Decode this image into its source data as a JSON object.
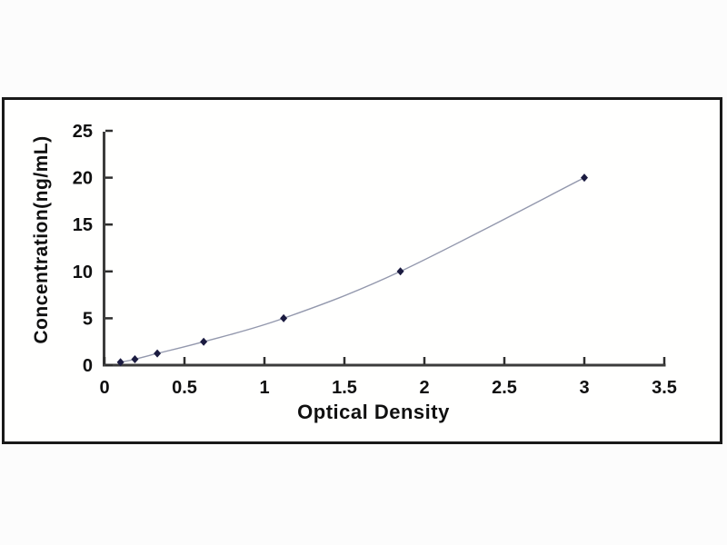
{
  "chart_data": {
    "type": "line",
    "title": "",
    "xlabel": "Optical Density",
    "ylabel": "Concentration(ng/mL)",
    "x": [
      0.1,
      0.19,
      0.33,
      0.62,
      1.12,
      1.85,
      3.0
    ],
    "y": [
      0.31,
      0.63,
      1.25,
      2.5,
      5,
      10,
      20
    ],
    "xlim": [
      0,
      3.5
    ],
    "ylim": [
      0,
      25
    ],
    "x_ticks": [
      "0",
      "0.5",
      "1",
      "1.5",
      "2",
      "2.5",
      "3",
      "3.5"
    ],
    "y_ticks": [
      "0",
      "5",
      "10",
      "15",
      "20",
      "25"
    ],
    "grid": false,
    "legend": null,
    "marker": "diamond",
    "colors": {
      "line": "#9398ad",
      "marker": "#1b1b40",
      "axis": "#3c3c3c",
      "tick": "#2e2e2e",
      "text": "#101010",
      "frame_border": "#191919",
      "plot_background": "#fffffe",
      "page_background": "#fcfcfc"
    }
  }
}
